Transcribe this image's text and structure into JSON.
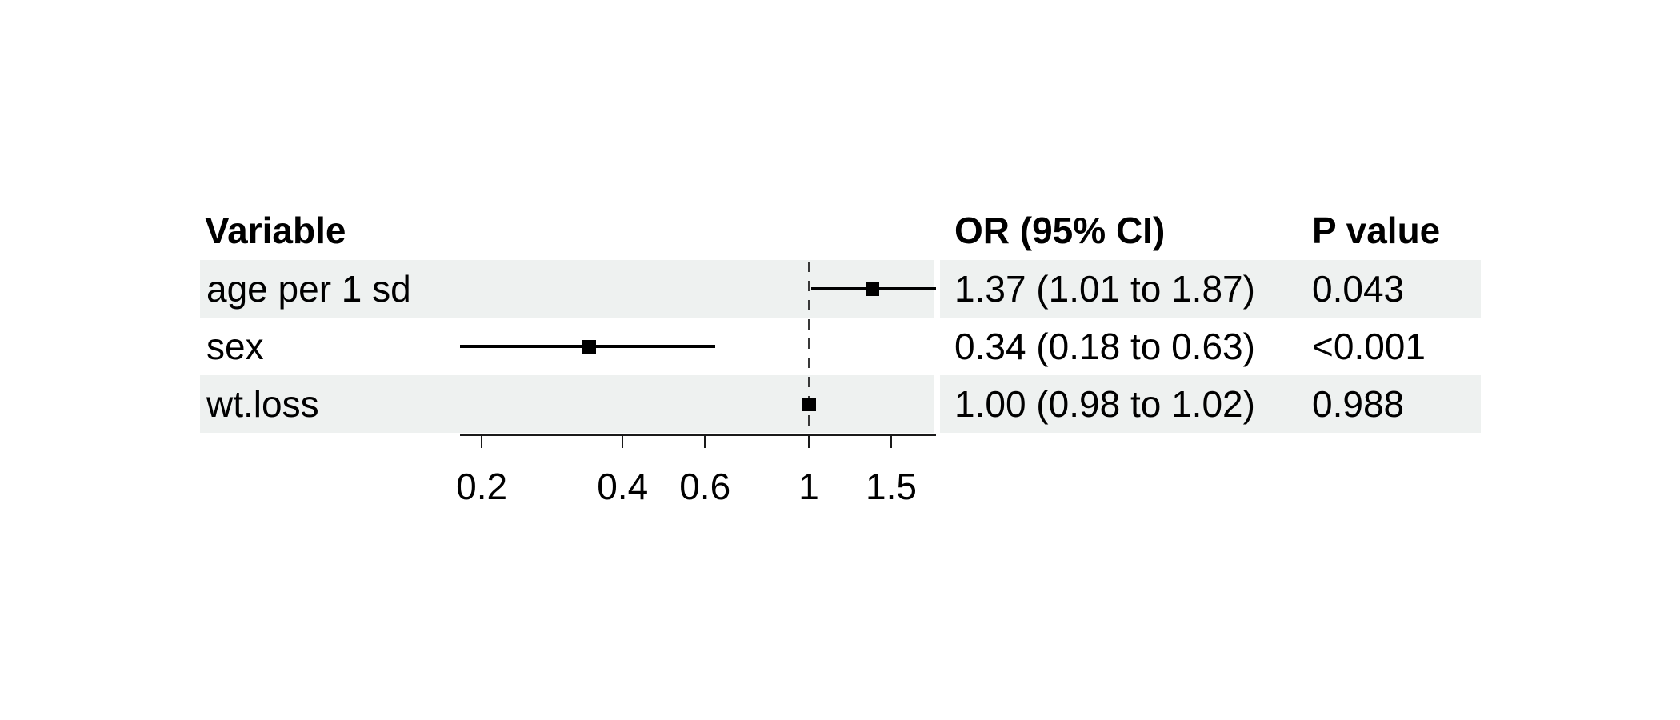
{
  "headers": {
    "variable": "Variable",
    "or_ci": "OR (95% CI)",
    "p": "P value"
  },
  "chart_data": {
    "type": "scatter",
    "variant": "forest-plot",
    "x_scale": "log10",
    "xlim": [
      0.18,
      1.87
    ],
    "reference_line": 1,
    "x_ticks": [
      {
        "value": 0.2,
        "label": "0.2"
      },
      {
        "value": 0.4,
        "label": "0.4"
      },
      {
        "value": 0.6,
        "label": "0.6"
      },
      {
        "value": 1,
        "label": "1"
      },
      {
        "value": 1.5,
        "label": "1.5"
      }
    ],
    "rows": [
      {
        "variable": "age per 1 sd",
        "or": 1.37,
        "ci_low": 1.01,
        "ci_high": 1.87,
        "or_ci_label": "1.37 (1.01 to 1.87)",
        "p_label": "0.043",
        "shaded": true
      },
      {
        "variable": "sex",
        "or": 0.34,
        "ci_low": 0.18,
        "ci_high": 0.63,
        "or_ci_label": "0.34 (0.18 to 0.63)",
        "p_label": "<0.001",
        "shaded": false
      },
      {
        "variable": "wt.loss",
        "or": 1.0,
        "ci_low": 0.98,
        "ci_high": 1.02,
        "or_ci_label": "1.00 (0.98 to 1.02)",
        "p_label": "0.988",
        "shaded": true
      }
    ]
  },
  "colors": {
    "stripe": "#eef1f0",
    "ci_line": "#000000",
    "marker": "#000000",
    "reference_line": "#383838",
    "axis": "#1a1a1a",
    "text": "#000000"
  }
}
